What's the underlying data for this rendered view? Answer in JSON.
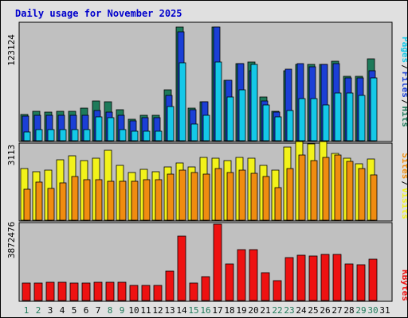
{
  "title": "Daily usage for November 2025",
  "colors": {
    "hits": "#1e7a5a",
    "files": "#1b3fd6",
    "pages": "#14c8e8",
    "visits": "#f2f21a",
    "sites": "#f08c10",
    "kbytes": "#ee1111",
    "panel": "#c0c0c0",
    "frame": "#e0e0e0",
    "weekend_day": "#1e7a5a"
  },
  "labels": {
    "pages": "Pages",
    "files": "Files",
    "hits": "Hits",
    "sites": "Sites",
    "visits": "Visits",
    "kbytes": "KBytes",
    "sep": "/"
  },
  "axis_max": {
    "top": "123124",
    "middle": "3113",
    "bottom": "3872476"
  },
  "chart_data": {
    "type": "bar",
    "title": "Daily usage for November 2025",
    "categories": [
      "1",
      "2",
      "3",
      "4",
      "5",
      "6",
      "7",
      "8",
      "9",
      "10",
      "11",
      "12",
      "13",
      "14",
      "15",
      "16",
      "17",
      "18",
      "19",
      "20",
      "21",
      "22",
      "23",
      "24",
      "25",
      "26",
      "27",
      "28",
      "29",
      "30",
      "31"
    ],
    "weekend_days": [
      "1",
      "2",
      "8",
      "9",
      "15",
      "16",
      "22",
      "23",
      "29",
      "30"
    ],
    "panels": [
      {
        "name": "hits-files-pages",
        "ymax": 123124,
        "series": [
          {
            "name": "Hits",
            "values": [
              28000,
              31000,
              30000,
              31000,
              31000,
              34000,
              42000,
              41000,
              33000,
              23000,
              27000,
              27000,
              54000,
              120000,
              34000,
              41000,
              120000,
              64000,
              81000,
              83000,
              46000,
              31000,
              74000,
              80000,
              80000,
              80000,
              84000,
              68000,
              68000,
              86000,
              0
            ]
          },
          {
            "name": "Files",
            "values": [
              26000,
              27000,
              27000,
              27000,
              27000,
              27000,
              32000,
              30000,
              27000,
              21000,
              24000,
              24000,
              48000,
              115000,
              33000,
              41000,
              120000,
              64000,
              81000,
              74000,
              42000,
              30000,
              75000,
              81000,
              78000,
              80000,
              81000,
              66000,
              66000,
              74000,
              0
            ]
          },
          {
            "name": "Pages",
            "values": [
              9000,
              12000,
              12000,
              12000,
              12000,
              12000,
              25000,
              24000,
              12000,
              10000,
              10000,
              10000,
              36000,
              82000,
              18000,
              27000,
              83000,
              46000,
              54000,
              80000,
              38000,
              25000,
              32000,
              44000,
              44000,
              38000,
              50000,
              50000,
              48000,
              66000,
              0
            ]
          }
        ]
      },
      {
        "name": "visits-sites",
        "ymax": 3113,
        "series": [
          {
            "name": "Visits",
            "values": [
              2130,
              2010,
              2080,
              2480,
              2640,
              2460,
              2560,
              2900,
              2250,
              1960,
              2090,
              1990,
              2180,
              2360,
              2180,
              2600,
              2540,
              2460,
              2580,
              2570,
              2260,
              2060,
              3020,
              3260,
              3160,
              3260,
              2760,
              2560,
              2340,
              2510,
              0
            ]
          },
          {
            "name": "Sites",
            "values": [
              1290,
              1560,
              1300,
              1530,
              1800,
              1680,
              1680,
              1600,
              1610,
              1620,
              1660,
              1660,
              1900,
              2060,
              1980,
              1910,
              2120,
              1980,
              2080,
              1930,
              1810,
              1350,
              2140,
              2680,
              2460,
              2580,
              2680,
              2440,
              2130,
              1860,
              0
            ]
          }
        ]
      },
      {
        "name": "kbytes",
        "ymax": 3872476,
        "series": [
          {
            "name": "KBytes",
            "values": [
              880000,
              900000,
              940000,
              940000,
              900000,
              900000,
              920000,
              940000,
              920000,
              760000,
              780000,
              780000,
              1510000,
              3270000,
              900000,
              1210000,
              3860000,
              1860000,
              2570000,
              2570000,
              1400000,
              990000,
              2190000,
              2280000,
              2240000,
              2320000,
              2320000,
              1850000,
              1810000,
              2090000,
              0
            ]
          }
        ]
      }
    ]
  }
}
